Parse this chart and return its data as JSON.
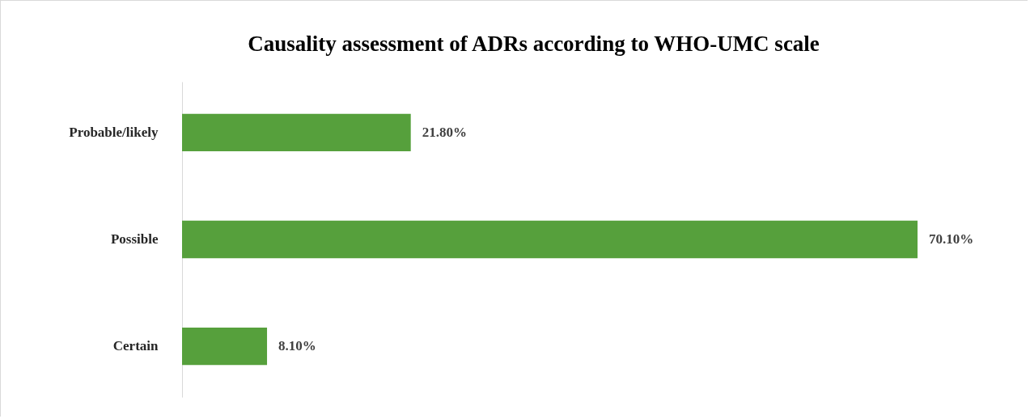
{
  "chart_data": {
    "type": "bar",
    "orientation": "horizontal",
    "title": "Causality assessment of ADRs according to WHO-UMC scale",
    "categories": [
      "Probable/likely",
      "Possible",
      "Certain"
    ],
    "values": [
      21.8,
      70.1,
      8.1
    ],
    "value_labels": [
      "21.80%",
      "70.10%",
      "8.10%"
    ],
    "color": "#56a03c"
  }
}
